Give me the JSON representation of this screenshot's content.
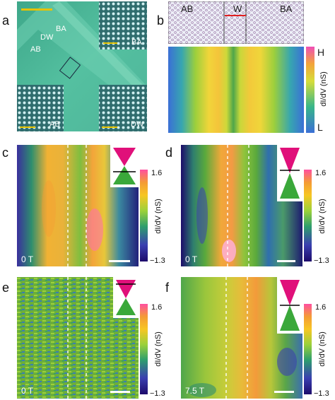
{
  "panels": {
    "a": {
      "label": "a",
      "text_dw": "DW",
      "text_ab": "AB",
      "text_ba": "BA",
      "inset_ba": "BA",
      "inset_ab": "AB",
      "inset_dw": "DW"
    },
    "b": {
      "label": "b",
      "text_ab": "AB",
      "text_w": "W",
      "text_ba": "BA",
      "colorbar_high": "H",
      "colorbar_low": "L",
      "colorbar_label": "dI/dV (nS)"
    },
    "c": {
      "label": "c",
      "field": "0 T",
      "cb_max": "1.6",
      "cb_min": "−1.3",
      "cb_label": "dI/dV (nS)"
    },
    "d": {
      "label": "d",
      "field": "0 T",
      "cb_max": "1.6",
      "cb_min": "−1.3",
      "cb_label": "dI/dV (nS)"
    },
    "e": {
      "label": "e",
      "field": "0 T",
      "cb_max": "1.6",
      "cb_min": "−1.3",
      "cb_label": "dI/dV (nS)"
    },
    "f": {
      "label": "f",
      "field": "7.5 T",
      "cb_max": "1.6",
      "cb_min": "−1.3",
      "cb_label": "dI/dV (nS)"
    }
  },
  "colors": {
    "colormap": [
      "#1d0b6b",
      "#3a3fb0",
      "#2e9e6e",
      "#9bd13a",
      "#f7c623",
      "#f49b35",
      "#ff4fa0",
      "#ffffff"
    ],
    "scalebar_yellow": "#e6c200",
    "marker_red": "#e02020"
  }
}
